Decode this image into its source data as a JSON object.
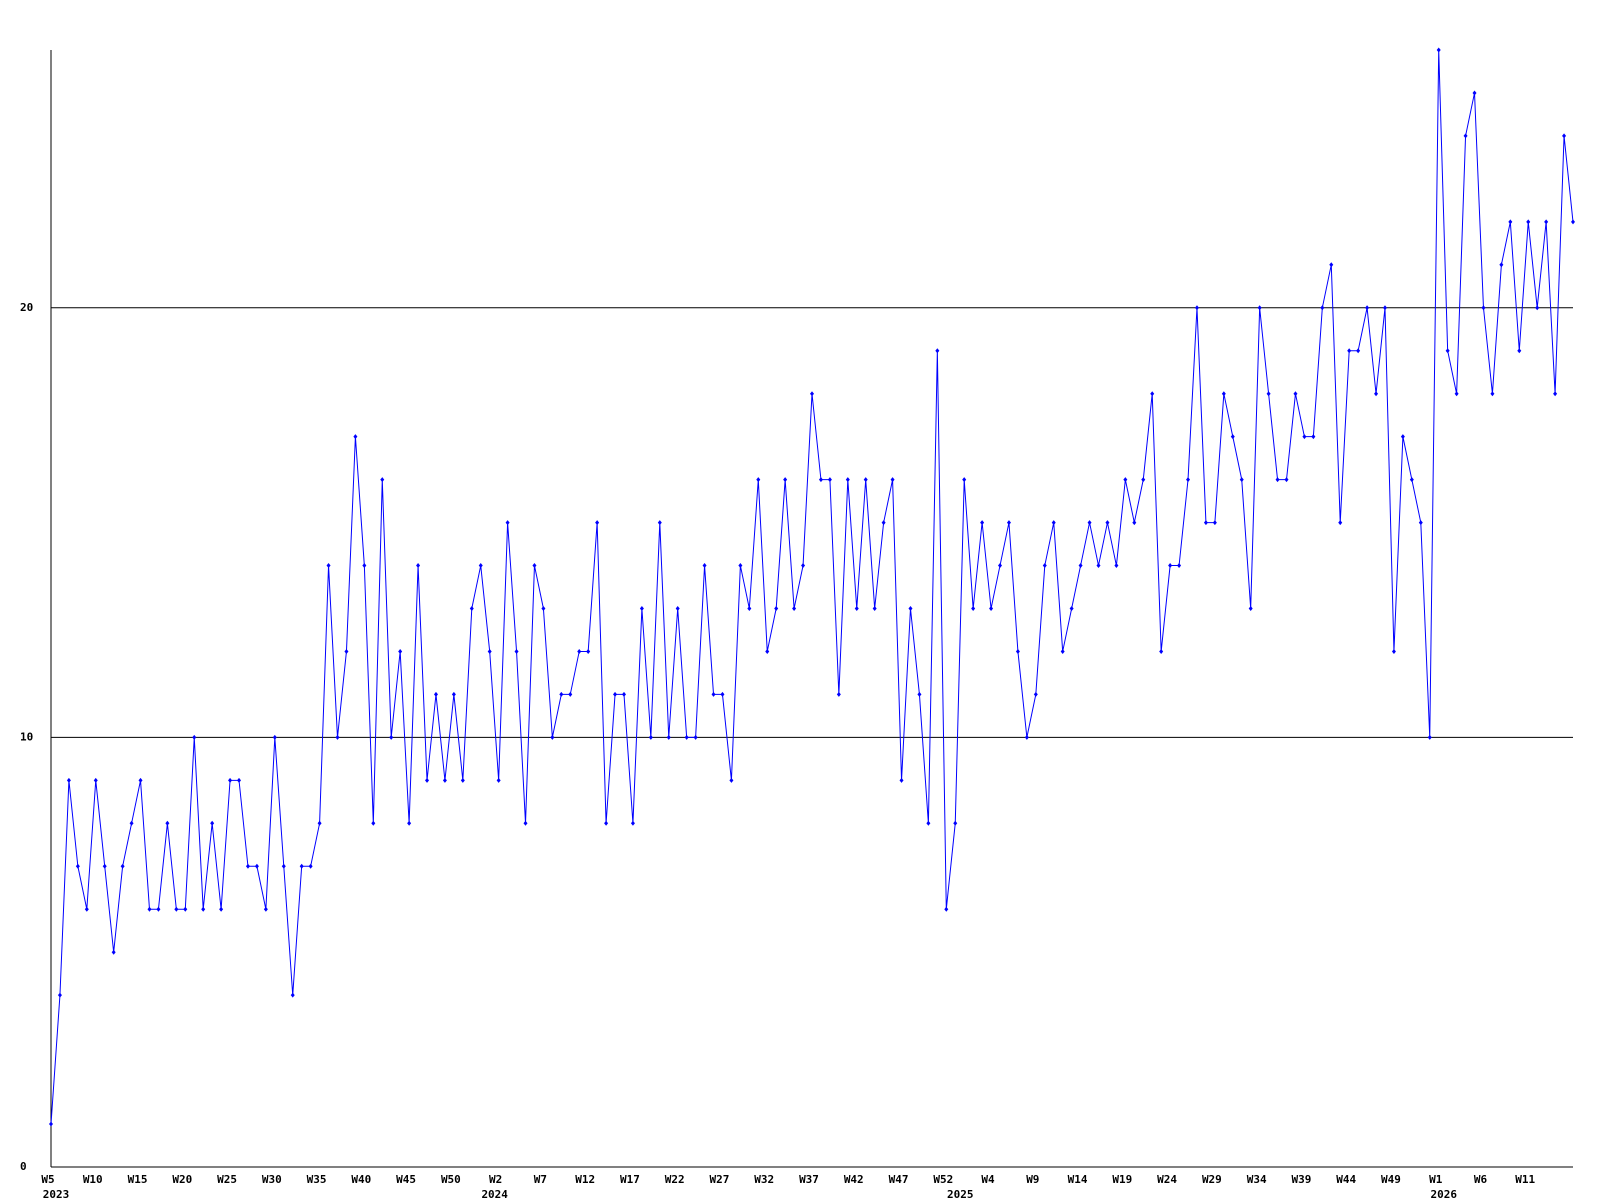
{
  "chart_data": {
    "type": "line",
    "categories": [
      "W5",
      null,
      null,
      null,
      null,
      "W10",
      null,
      null,
      null,
      null,
      "W15",
      null,
      null,
      null,
      null,
      "W20",
      null,
      null,
      null,
      null,
      "W25",
      null,
      null,
      null,
      null,
      "W30",
      null,
      null,
      null,
      null,
      "W35",
      null,
      null,
      null,
      null,
      "W40",
      null,
      null,
      null,
      null,
      "W45",
      null,
      null,
      null,
      null,
      "W50",
      null,
      null,
      null,
      null,
      "W2",
      null,
      null,
      null,
      null,
      "W7",
      null,
      null,
      null,
      null,
      "W12",
      null,
      null,
      null,
      null,
      "W17",
      null,
      null,
      null,
      null,
      "W22",
      null,
      null,
      null,
      null,
      "W27",
      null,
      null,
      null,
      null,
      "W32",
      null,
      null,
      null,
      null,
      "W37",
      null,
      null,
      null,
      null,
      "W42",
      null,
      null,
      null,
      null,
      "W47",
      null,
      null,
      null,
      null,
      "W52",
      null,
      null,
      null,
      null,
      "W4",
      null,
      null,
      null,
      null,
      "W9",
      null,
      null,
      null,
      null,
      "W14",
      null,
      null,
      null,
      null,
      "W19",
      null,
      null,
      null,
      null,
      "W24",
      null,
      null,
      null,
      null,
      "W29",
      null,
      null,
      null,
      null,
      "W34",
      null,
      null,
      null,
      null,
      "W39",
      null,
      null,
      null,
      null,
      "W44",
      null,
      null,
      null,
      null,
      "W49",
      null,
      null,
      null,
      null,
      "W1",
      null,
      null,
      null,
      null,
      "W6",
      null,
      null,
      null,
      null,
      "W11",
      null,
      null,
      null,
      null,
      null
    ],
    "year_labels": [
      "2023",
      null,
      null,
      null,
      null,
      null,
      null,
      null,
      null,
      null,
      null,
      null,
      null,
      null,
      null,
      null,
      null,
      null,
      null,
      null,
      null,
      null,
      null,
      null,
      null,
      null,
      null,
      null,
      null,
      null,
      null,
      null,
      null,
      null,
      null,
      null,
      null,
      null,
      null,
      null,
      null,
      null,
      null,
      null,
      null,
      null,
      null,
      null,
      null,
      "2024",
      null,
      null,
      null,
      null,
      null,
      null,
      null,
      null,
      null,
      null,
      null,
      null,
      null,
      null,
      null,
      null,
      null,
      null,
      null,
      null,
      null,
      null,
      null,
      null,
      null,
      null,
      null,
      null,
      null,
      null,
      null,
      null,
      null,
      null,
      null,
      null,
      null,
      null,
      null,
      null,
      null,
      null,
      null,
      null,
      null,
      null,
      null,
      null,
      null,
      null,
      null,
      "2025",
      null,
      null,
      null,
      null,
      null,
      null,
      null,
      null,
      null,
      null,
      null,
      null,
      null,
      null,
      null,
      null,
      null,
      null,
      null,
      null,
      null,
      null,
      null,
      null,
      null,
      null,
      null,
      null,
      null,
      null,
      null,
      null,
      null,
      null,
      null,
      null,
      null,
      null,
      null,
      null,
      null,
      null,
      null,
      null,
      null,
      null,
      null,
      null,
      null,
      null,
      null,
      null,
      null,
      "2026",
      null,
      null,
      null,
      null,
      null,
      null,
      null,
      null,
      null,
      null,
      null,
      null,
      null,
      null,
      null
    ],
    "values": [
      1,
      4,
      9,
      7,
      6,
      9,
      7,
      5,
      7,
      8,
      9,
      6,
      6,
      8,
      6,
      6,
      10,
      6,
      8,
      6,
      9,
      9,
      7,
      7,
      6,
      10,
      7,
      4,
      7,
      7,
      8,
      14,
      10,
      12,
      17,
      14,
      8,
      16,
      10,
      12,
      8,
      14,
      9,
      11,
      9,
      11,
      9,
      13,
      14,
      12,
      9,
      15,
      12,
      8,
      14,
      13,
      10,
      11,
      11,
      12,
      12,
      15,
      8,
      11,
      11,
      8,
      13,
      10,
      15,
      10,
      13,
      10,
      10,
      14,
      11,
      11,
      9,
      14,
      13,
      16,
      12,
      13,
      16,
      13,
      14,
      18,
      16,
      16,
      11,
      16,
      13,
      16,
      13,
      15,
      16,
      9,
      13,
      11,
      8,
      19,
      6,
      8,
      16,
      13,
      15,
      13,
      14,
      15,
      12,
      10,
      11,
      14,
      15,
      12,
      13,
      14,
      15,
      14,
      15,
      14,
      16,
      15,
      16,
      18,
      12,
      14,
      14,
      16,
      20,
      15,
      15,
      18,
      17,
      16,
      13,
      20,
      18,
      16,
      16,
      18,
      17,
      17,
      20,
      21,
      15,
      19,
      19,
      20,
      18,
      20,
      12,
      17,
      16,
      15,
      10,
      26,
      19,
      18,
      24,
      25,
      20,
      18,
      21,
      22,
      19,
      22,
      20,
      22,
      18,
      24,
      22
    ],
    "color": "#0000ff",
    "gridcolor": "#000000",
    "ylim": [
      0,
      26
    ],
    "yticks": [
      0,
      10,
      20
    ],
    "grid": true
  }
}
